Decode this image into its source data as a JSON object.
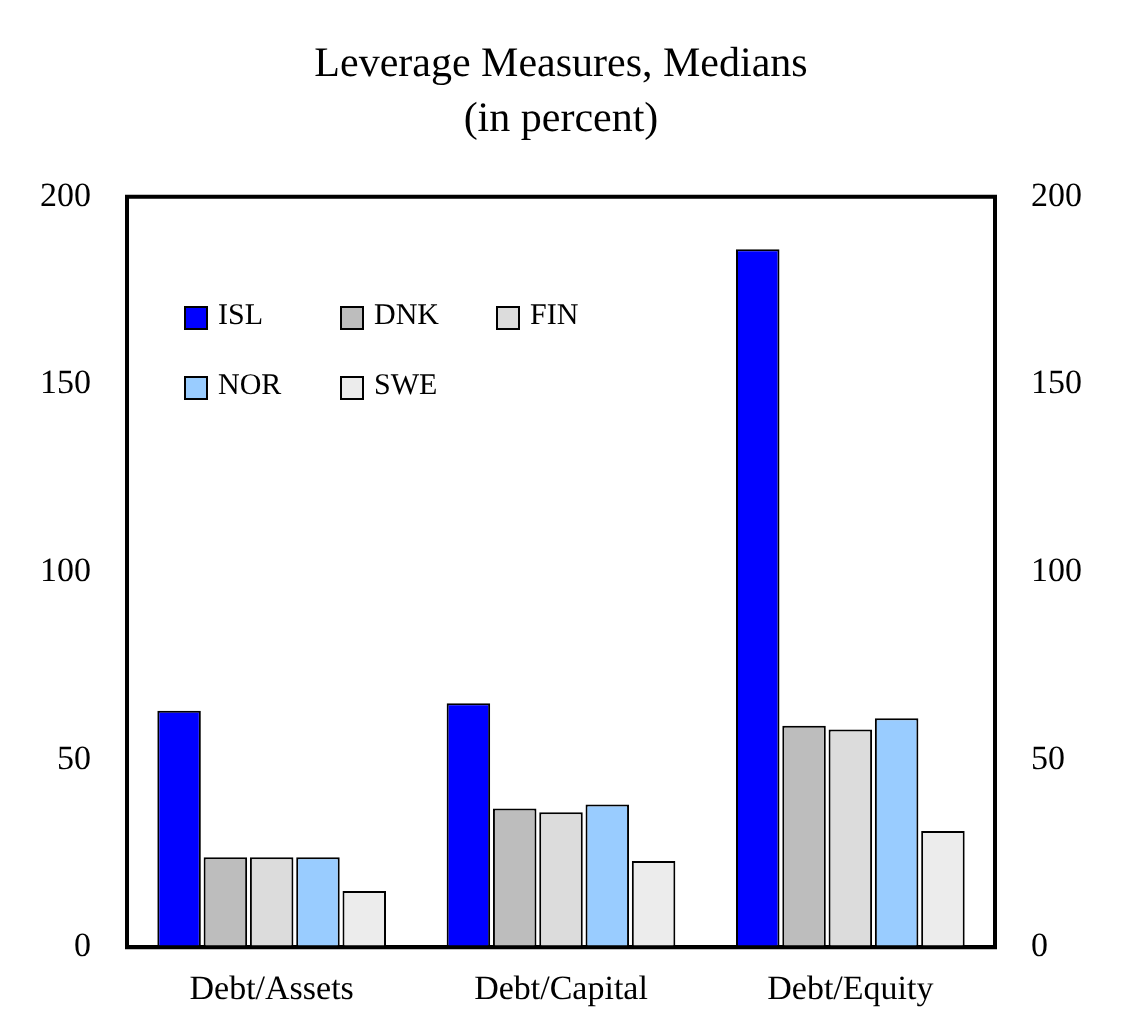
{
  "chart_data": {
    "type": "bar",
    "title": "Leverage Measures, Medians",
    "subtitle": "(in percent)",
    "categories": [
      "Debt/Assets",
      "Debt/Capital",
      "Debt/Equity"
    ],
    "series": [
      {
        "name": "ISL",
        "color": "#0000ff",
        "values": [
          63,
          65,
          186
        ]
      },
      {
        "name": "DNK",
        "color": "#bdbdbd",
        "values": [
          24,
          37,
          59
        ]
      },
      {
        "name": "FIN",
        "color": "#dcdcdc",
        "values": [
          24,
          36,
          58
        ]
      },
      {
        "name": "NOR",
        "color": "#99ccff",
        "values": [
          24,
          38,
          61
        ]
      },
      {
        "name": "SWE",
        "color": "#ececec",
        "values": [
          15,
          23,
          31
        ]
      }
    ],
    "ylim": [
      0,
      200
    ],
    "yticks": [
      0,
      50,
      100,
      150,
      200
    ],
    "y2lim": [
      0,
      200
    ],
    "y2ticks": [
      0,
      50,
      100,
      150,
      200
    ],
    "grid": false,
    "legend": "top left"
  }
}
